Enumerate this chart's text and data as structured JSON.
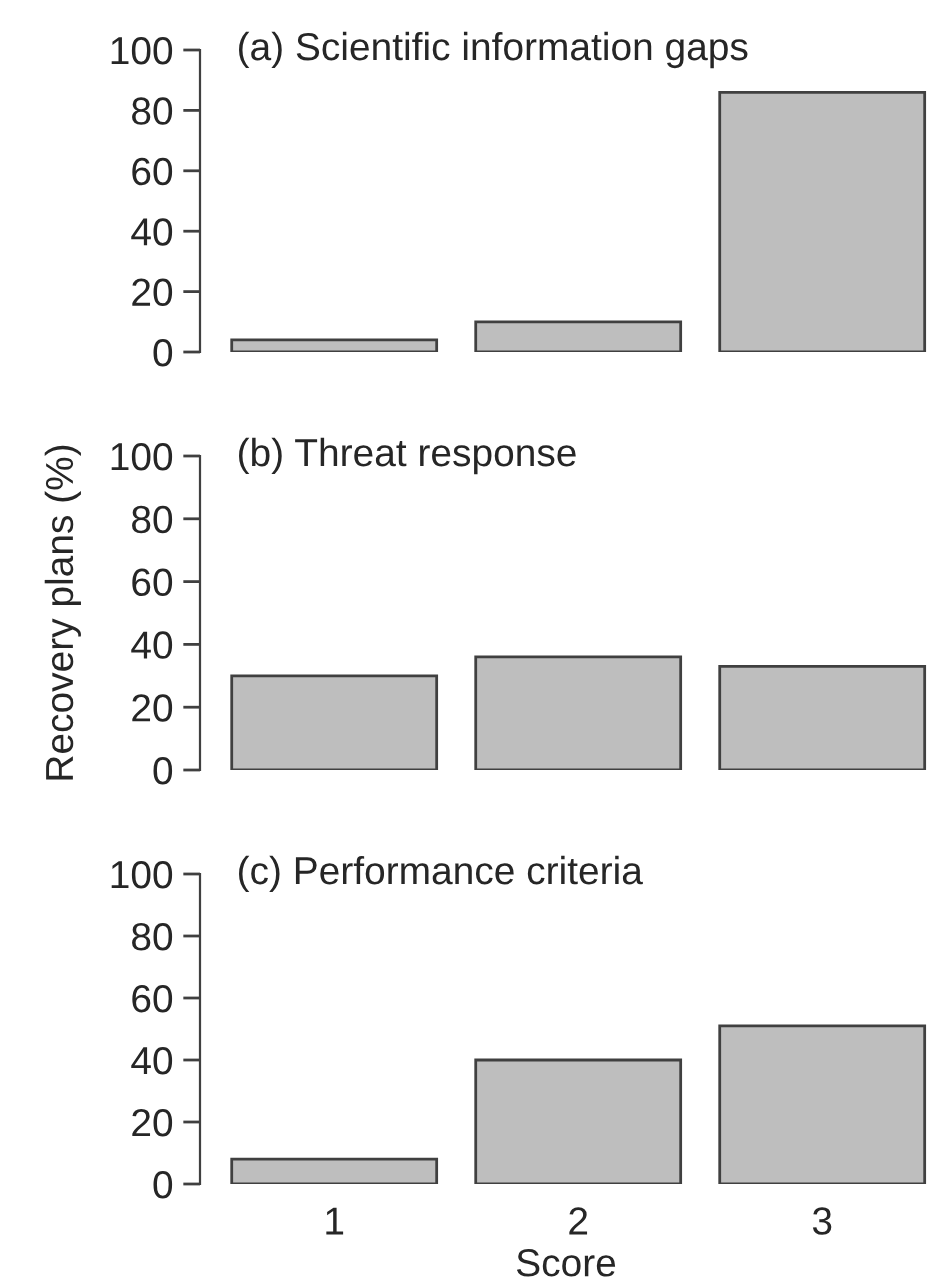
{
  "chart_data": [
    {
      "type": "bar",
      "title": "(a) Scientific information gaps",
      "categories": [
        "1",
        "2",
        "3"
      ],
      "values": [
        4,
        10,
        86
      ],
      "color": "#bebebe",
      "ylim": [
        0,
        100
      ],
      "yticks": [
        0,
        20,
        40,
        60,
        80,
        100
      ],
      "tick_labels": "y"
    },
    {
      "type": "bar",
      "title": "(b) Threat response",
      "ylabel": "Recovery plans (%)",
      "categories": [
        "1",
        "2",
        "3"
      ],
      "values": [
        30,
        36,
        33
      ],
      "color": "#bebebe",
      "ylim": [
        0,
        100
      ],
      "yticks": [
        0,
        20,
        40,
        60,
        80,
        100
      ],
      "tick_labels": "y"
    },
    {
      "type": "bar",
      "title": "(c) Performance criteria",
      "xlabel": "Score",
      "categories": [
        "1",
        "2",
        "3"
      ],
      "values": [
        8,
        40,
        51
      ],
      "color": "#bebebe",
      "ylim": [
        0,
        100
      ],
      "yticks": [
        0,
        20,
        40,
        60,
        80,
        100
      ]
    }
  ]
}
